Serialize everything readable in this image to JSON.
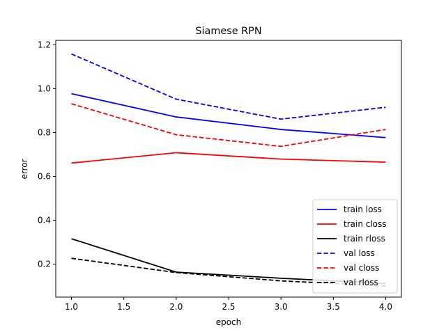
{
  "chart_data": {
    "type": "line",
    "title": "Siamese RPN",
    "xlabel": "epoch",
    "ylabel": "error",
    "xlim": [
      0.85,
      4.15
    ],
    "ylim": [
      0.05,
      1.22
    ],
    "xticks": [
      1.0,
      1.5,
      2.0,
      2.5,
      3.0,
      3.5,
      4.0
    ],
    "xtick_labels": [
      "1.0",
      "1.5",
      "2.0",
      "2.5",
      "3.0",
      "3.5",
      "4.0"
    ],
    "yticks": [
      0.2,
      0.4,
      0.6,
      0.8,
      1.0,
      1.2
    ],
    "ytick_labels": [
      "0.2",
      "0.4",
      "0.6",
      "0.8",
      "1.0",
      "1.2"
    ],
    "grid": false,
    "legend_position": "lower-right",
    "x": [
      1,
      2,
      3,
      4
    ],
    "series": [
      {
        "name": "train loss",
        "color": "#0000ff",
        "dash": "solid",
        "values": [
          0.977,
          0.871,
          0.814,
          0.777
        ]
      },
      {
        "name": "train closs",
        "color": "#ff0000",
        "dash": "solid",
        "values": [
          0.661,
          0.708,
          0.679,
          0.665
        ]
      },
      {
        "name": "train rloss",
        "color": "#000000",
        "dash": "solid",
        "values": [
          0.316,
          0.164,
          0.136,
          0.112
        ]
      },
      {
        "name": "val loss",
        "color": "#0000ff",
        "dash": "dashed",
        "values": [
          1.158,
          0.952,
          0.861,
          0.915
        ]
      },
      {
        "name": "val closs",
        "color": "#ff0000",
        "dash": "dashed",
        "values": [
          0.931,
          0.79,
          0.737,
          0.814
        ]
      },
      {
        "name": "val rloss",
        "color": "#000000",
        "dash": "dashed",
        "values": [
          0.227,
          0.162,
          0.124,
          0.101
        ]
      }
    ]
  }
}
